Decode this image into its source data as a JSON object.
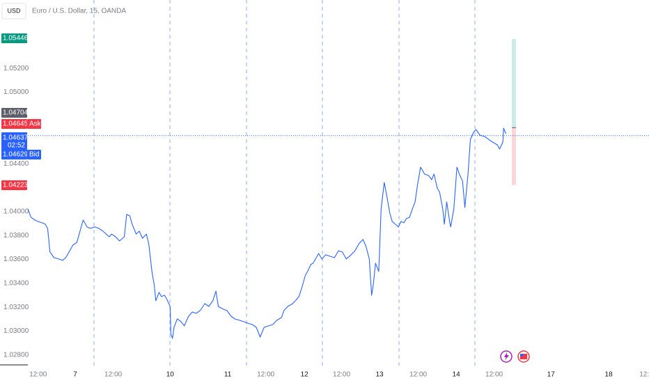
{
  "chart_data": {
    "type": "line",
    "currency": "USD",
    "title": "Euro / U.S. Dollar, 15, OANDA",
    "xlim": [
      0,
      786
    ],
    "xticks": [
      {
        "value": 13,
        "label": "12:00"
      },
      {
        "value": 60,
        "label": "7"
      },
      {
        "value": 108,
        "label": "12:00"
      },
      {
        "value": 180,
        "label": "10"
      },
      {
        "value": 253,
        "label": "11"
      },
      {
        "value": 301,
        "label": "12:00"
      },
      {
        "value": 350,
        "label": "12"
      },
      {
        "value": 397,
        "label": "12:00"
      },
      {
        "value": 445,
        "label": "13"
      },
      {
        "value": 494,
        "label": "12:00"
      },
      {
        "value": 542,
        "label": "14"
      },
      {
        "value": 590,
        "label": "12:00"
      },
      {
        "value": 662,
        "label": "17"
      },
      {
        "value": 735,
        "label": "18"
      },
      {
        "value": 780,
        "label": "12:"
      }
    ],
    "ylim": [
      1.02711,
      1.05773
    ],
    "yticks": [
      {
        "value": 1.028,
        "label": "1.02800"
      },
      {
        "value": 1.03,
        "label": "1.03000"
      },
      {
        "value": 1.032,
        "label": "1.03200"
      },
      {
        "value": 1.034,
        "label": "1.03400"
      },
      {
        "value": 1.036,
        "label": "1.03600"
      },
      {
        "value": 1.038,
        "label": "1.03800"
      },
      {
        "value": 1.04,
        "label": "1.04000"
      },
      {
        "value": 1.044,
        "label": "1.04400"
      },
      {
        "value": 1.05,
        "label": "1.05000"
      },
      {
        "value": 1.052,
        "label": "1.05200"
      }
    ],
    "price_tags": [
      {
        "value": 1.05446,
        "label": "1.05446",
        "color": "#089981"
      },
      {
        "value": 1.04704,
        "label": "1.04704",
        "color": "#5d606b"
      },
      {
        "value": 1.04645,
        "label": "1.04645",
        "color": "#f23645",
        "tag": "Ask"
      },
      {
        "value": 1.04637,
        "label": "1.04637",
        "color": "#2962ff",
        "countdown": "02:52"
      },
      {
        "value": 1.04629,
        "label": "1.04629",
        "color": "#2962ff",
        "tag": "Bid"
      },
      {
        "value": 1.04223,
        "label": "1.04223",
        "color": "#f23645"
      }
    ],
    "series": [
      {
        "color": "#2962ff",
        "x": [
          0,
          4,
          9,
          13,
          18,
          22,
          25,
          28,
          33,
          39,
          44,
          48,
          53,
          57,
          62,
          66,
          70,
          75,
          79,
          85,
          90,
          95,
          99,
          103,
          106,
          111,
          116,
          122,
          125,
          129,
          132,
          137,
          141,
          145,
          150,
          153,
          157,
          160,
          162,
          166,
          169,
          173,
          176,
          180,
          181,
          183,
          185,
          189,
          194,
          198,
          203,
          208,
          213,
          218,
          224,
          229,
          234,
          238,
          241,
          247,
          252,
          257,
          262,
          268,
          273,
          278,
          284,
          289,
          294,
          299,
          305,
          310,
          315,
          321,
          324,
          329,
          335,
          340,
          343,
          347,
          351,
          354,
          358,
          361,
          365,
          368,
          372,
          377,
          382,
          388,
          393,
          398,
          403,
          409,
          414,
          419,
          424,
          428,
          432,
          435,
          437,
          440,
          444,
          447,
          451,
          454,
          458,
          461,
          465,
          469,
          472,
          476,
          479,
          483,
          486,
          490,
          493,
          497,
          502,
          507,
          511,
          514,
          518,
          521,
          525,
          527,
          530,
          534,
          535,
          539,
          543,
          546,
          550,
          553,
          557,
          560,
          564,
          567,
          572,
          578,
          583,
          588,
          594,
          597,
          601,
          602,
          605
        ],
        "values": [
          1.04023,
          1.03953,
          1.0393,
          1.03918,
          1.03907,
          1.03895,
          1.0386,
          1.03662,
          1.03615,
          1.03604,
          1.03592,
          1.03615,
          1.03673,
          1.0372,
          1.03743,
          1.03837,
          1.0393,
          1.03872,
          1.0386,
          1.03872,
          1.0386,
          1.03837,
          1.03813,
          1.0379,
          1.03813,
          1.0379,
          1.03755,
          1.0379,
          1.03977,
          1.03965,
          1.03895,
          1.03813,
          1.03837,
          1.03778,
          1.03813,
          1.03732,
          1.03499,
          1.03382,
          1.03254,
          1.03324,
          1.03289,
          1.033,
          1.03265,
          1.03207,
          1.02974,
          1.02939,
          1.03032,
          1.03102,
          1.03079,
          1.03044,
          1.0312,
          1.0316,
          1.03149,
          1.03172,
          1.0323,
          1.03207,
          1.03254,
          1.03335,
          1.03207,
          1.03184,
          1.03172,
          1.03125,
          1.03102,
          1.0309,
          1.03079,
          1.03067,
          1.03055,
          1.03032,
          1.0295,
          1.03032,
          1.03044,
          1.03055,
          1.0309,
          1.03114,
          1.03172,
          1.03207,
          1.0323,
          1.03265,
          1.03289,
          1.0337,
          1.03464,
          1.03499,
          1.03557,
          1.03569,
          1.03615,
          1.0365,
          1.03604,
          1.03639,
          1.03627,
          1.03615,
          1.03673,
          1.03662,
          1.03604,
          1.03639,
          1.03673,
          1.03732,
          1.03767,
          1.03708,
          1.03604,
          1.033,
          1.03382,
          1.03569,
          1.03499,
          1.04023,
          1.04245,
          1.0414,
          1.03988,
          1.03918,
          1.03895,
          1.03872,
          1.03918,
          1.03907,
          1.03942,
          1.03953,
          1.04012,
          1.04082,
          1.04222,
          1.04373,
          1.04315,
          1.04303,
          1.04268,
          1.04315,
          1.04198,
          1.04163,
          1.04023,
          1.03895,
          1.04082,
          1.03907,
          1.03872,
          1.04023,
          1.04373,
          1.04315,
          1.04257,
          1.04035,
          1.04315,
          1.04606,
          1.04665,
          1.04688,
          1.04641,
          1.0463,
          1.04606,
          1.04583,
          1.0456,
          1.04525,
          1.04583,
          1.047,
          1.04653
        ]
      }
    ]
  }
}
